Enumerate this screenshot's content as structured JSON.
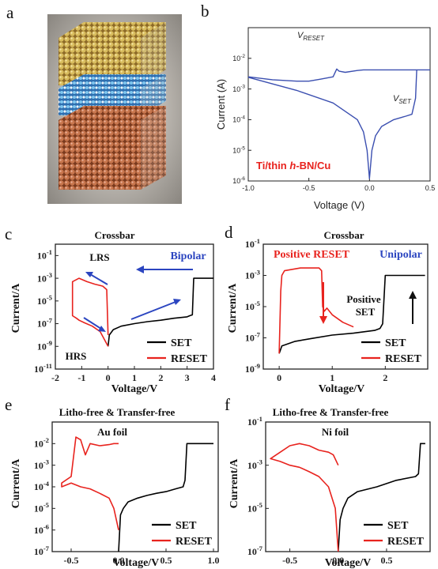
{
  "panel_letters": {
    "a": "a",
    "b": "b",
    "c": "c",
    "d": "d",
    "e": "e",
    "f": "f"
  },
  "colors": {
    "series_blue": "#3b4fb0",
    "set": "#000000",
    "reset": "#e8231e",
    "annot_blue": "#2b45c0",
    "annot_red": "#e8231e",
    "gold": "#c9a84c",
    "cyan": "#4aa0d8",
    "copper": "#c0704a"
  },
  "panel_a": {
    "layers": [
      "gold atoms (top electrode)",
      "blue hexagonal lattice (h-BN)",
      "copper atoms (bottom electrode)"
    ]
  },
  "chart_data": [
    {
      "id": "b",
      "type": "line",
      "xlabel": "Voltage (V)",
      "ylabel": "Current (A)",
      "xlim": [
        -1.0,
        0.5
      ],
      "ylim": [
        1e-06,
        0.1
      ],
      "yscale": "log",
      "xticks": [
        -1.0,
        -0.5,
        0.0,
        0.5
      ],
      "xtick_labels": [
        "-1.0",
        "-0.5",
        "0.0",
        "0.5"
      ],
      "yticks": [
        1e-06,
        1e-05,
        0.0001,
        0.001,
        0.01
      ],
      "ytick_labels": [
        "10-6",
        "10-5",
        "10-4",
        "10-3",
        "10-2"
      ],
      "annotations": [
        {
          "text": "V",
          "sub": "RESET",
          "x": -0.31,
          "y": 0.012
        },
        {
          "text": "V",
          "sub": "SET",
          "x": 0.35,
          "y": 0.00012
        }
      ],
      "label": "Ti/thin h-BN/Cu",
      "series": [
        {
          "name": "",
          "values_x": [
            -1.0,
            -0.8,
            -0.6,
            -0.5,
            -0.4,
            -0.3,
            -0.27,
            -0.25,
            -0.2,
            -0.1,
            -0.05,
            -0.02,
            0.0,
            0.02,
            0.05,
            0.1,
            0.2,
            0.3,
            0.35,
            0.38,
            0.4,
            0.5
          ],
          "values_y": [
            0.0025,
            0.002,
            0.0018,
            0.0018,
            0.0021,
            0.0025,
            0.0045,
            0.0038,
            0.0035,
            0.004,
            0.0042,
            0.0042,
            0.0042,
            0.0042,
            0.0042,
            0.0042,
            0.0042,
            0.0042,
            0.0042,
            0.0042,
            0.0042,
            0.0042
          ]
        },
        {
          "name": "",
          "values_x": [
            -1.0,
            -0.6,
            -0.3,
            -0.1,
            -0.05,
            -0.02,
            0.0,
            0.02,
            0.05,
            0.1,
            0.2,
            0.3,
            0.35,
            0.38,
            0.39
          ],
          "values_y": [
            0.0024,
            0.0009,
            0.00035,
            0.0001,
            4e-05,
            1e-05,
            1.2e-06,
            1e-05,
            3e-05,
            6e-05,
            0.0001,
            0.00013,
            0.00015,
            0.0005,
            0.0042
          ]
        }
      ]
    },
    {
      "id": "c",
      "type": "line",
      "title": "Crossbar",
      "xlabel": "Voltage/V",
      "ylabel": "Current/A",
      "xlim": [
        -2,
        4
      ],
      "ylim": [
        1e-11,
        1
      ],
      "yscale": "log",
      "xticks": [
        -2,
        -1,
        0,
        1,
        2,
        3,
        4
      ],
      "xtick_labels": [
        "-2",
        "-1",
        "0",
        "1",
        "2",
        "3",
        "4"
      ],
      "yticks": [
        1e-11,
        1e-09,
        1e-07,
        1e-05,
        0.001,
        0.1
      ],
      "ytick_labels": [
        "10-11",
        "10-9",
        "10-7",
        "10-5",
        "10-3",
        "10-1"
      ],
      "annotations": [
        "LRS",
        "HRS",
        "Bipolar"
      ],
      "legend": [
        "SET",
        "RESET"
      ],
      "legend_position": "bottom-right",
      "series": [
        {
          "name": "SET",
          "x": [
            0.0,
            0.05,
            0.2,
            0.5,
            1.0,
            1.5,
            2.0,
            2.5,
            3.0,
            3.1,
            3.2,
            3.25,
            4.0
          ],
          "y": [
            1e-09,
            1e-08,
            3e-08,
            6e-08,
            1e-07,
            1.5e-07,
            2e-07,
            3e-07,
            4e-07,
            5e-07,
            6e-07,
            0.001,
            0.001
          ]
        },
        {
          "name": "RESET",
          "x": [
            0.0,
            -0.3,
            -0.6,
            -0.9,
            -1.1,
            -1.2,
            -1.35,
            -1.35,
            -1.1,
            -0.8,
            -0.5,
            -0.2,
            -0.05,
            0.0
          ],
          "y": [
            1e-09,
            2e-08,
            6e-08,
            1.2e-07,
            2e-07,
            3e-07,
            5e-07,
            0.0005,
            0.001,
            0.0005,
            0.0003,
            0.0002,
            0.0001,
            1e-08
          ]
        }
      ]
    },
    {
      "id": "d",
      "type": "line",
      "title": "Crossbar",
      "xlabel": "Voltage/V",
      "ylabel": "Current/A",
      "xlim": [
        -0.3,
        2.8
      ],
      "ylim": [
        1e-09,
        0.1
      ],
      "yscale": "log",
      "xticks": [
        0,
        1,
        2
      ],
      "xtick_labels": [
        "0",
        "1",
        "2"
      ],
      "yticks": [
        1e-09,
        1e-07,
        1e-05,
        0.001,
        0.1
      ],
      "ytick_labels": [
        "10-9",
        "10-7",
        "10-5",
        "10-3",
        "10-1"
      ],
      "annotations": [
        "Positive RESET",
        "Unipolar",
        "Positive SET"
      ],
      "legend": [
        "SET",
        "RESET"
      ],
      "legend_position": "bottom-right",
      "series": [
        {
          "name": "SET",
          "x": [
            0.0,
            0.05,
            0.3,
            0.6,
            1.0,
            1.4,
            1.8,
            1.9,
            1.95,
            2.0,
            2.75
          ],
          "y": [
            1e-08,
            3e-08,
            6e-08,
            9e-08,
            1.5e-07,
            2e-07,
            3e-07,
            4e-07,
            8e-07,
            0.001,
            0.001
          ]
        },
        {
          "name": "RESET",
          "x": [
            0.0,
            0.03,
            0.05,
            0.1,
            0.4,
            0.75,
            0.8,
            0.82,
            0.85,
            0.9,
            1.0,
            1.2,
            1.4
          ],
          "y": [
            1e-08,
            0.0001,
            0.001,
            0.002,
            0.003,
            0.003,
            0.002,
            1e-05,
            5e-06,
            8e-06,
            3e-06,
            1e-06,
            5e-07
          ]
        }
      ]
    },
    {
      "id": "e",
      "type": "line",
      "title": "Litho-free & Transfer-free",
      "label": "Au foil",
      "xlabel": "Voltage/V",
      "ylabel": "Current/A",
      "xlim": [
        -0.7,
        1.05
      ],
      "ylim": [
        1e-07,
        0.1
      ],
      "yscale": "log",
      "xticks": [
        -0.5,
        0.0,
        0.5,
        1.0
      ],
      "xtick_labels": [
        "-0.5",
        "0.0",
        "0.5",
        "1.0"
      ],
      "yticks": [
        1e-07,
        1e-06,
        1e-05,
        0.0001,
        0.001,
        0.01
      ],
      "ytick_labels": [
        "10-7",
        "10-6",
        "10-5",
        "10-4",
        "10-3",
        "10-2"
      ],
      "legend": [
        "SET",
        "RESET"
      ],
      "legend_position": "bottom-right",
      "series": [
        {
          "name": "SET",
          "x": [
            0.0,
            0.02,
            0.05,
            0.1,
            0.2,
            0.3,
            0.4,
            0.5,
            0.6,
            0.68,
            0.7,
            0.72,
            1.0
          ],
          "y": [
            1e-07,
            5e-06,
            1e-05,
            2e-05,
            3e-05,
            4e-05,
            5e-05,
            6e-05,
            8e-05,
            0.0001,
            0.0002,
            0.01,
            0.01
          ]
        },
        {
          "name": "RESET",
          "x": [
            0.0,
            -0.05,
            -0.1,
            -0.2,
            -0.3,
            -0.4,
            -0.5,
            -0.6,
            -0.6,
            -0.5,
            -0.45,
            -0.4,
            -0.35,
            -0.3,
            -0.2,
            -0.1,
            -0.05,
            0.0
          ],
          "y": [
            1e-06,
            1e-05,
            3e-05,
            5e-05,
            8e-05,
            0.0001,
            0.00015,
            0.0001,
            0.00015,
            0.0003,
            0.02,
            0.015,
            0.003,
            0.01,
            0.008,
            0.009,
            0.01,
            0.01
          ]
        }
      ]
    },
    {
      "id": "f",
      "type": "line",
      "title": "Litho-free & Transfer-free",
      "label": "Ni foil",
      "xlabel": "Voltage/V",
      "ylabel": "Current/A",
      "xlim": [
        -0.75,
        0.95
      ],
      "ylim": [
        1e-07,
        0.1
      ],
      "yscale": "log",
      "xticks": [
        -0.5,
        0.0,
        0.5
      ],
      "xtick_labels": [
        "-0.5",
        "0.0",
        "0.5"
      ],
      "yticks": [
        1e-07,
        1e-05,
        0.001,
        0.1
      ],
      "ytick_labels": [
        "10-7",
        "10-5",
        "10-3",
        "10-1"
      ],
      "legend": [
        "SET",
        "RESET"
      ],
      "legend_position": "bottom-right",
      "series": [
        {
          "name": "SET",
          "x": [
            0.0,
            0.02,
            0.05,
            0.1,
            0.2,
            0.4,
            0.6,
            0.8,
            0.83,
            0.85,
            0.9
          ],
          "y": [
            1e-07,
            3e-06,
            1e-05,
            3e-05,
            6e-05,
            0.0001,
            0.0002,
            0.0003,
            0.0004,
            0.01,
            0.01
          ]
        },
        {
          "name": "RESET",
          "x": [
            0.0,
            -0.03,
            -0.1,
            -0.2,
            -0.3,
            -0.4,
            -0.5,
            -0.6,
            -0.7,
            -0.6,
            -0.5,
            -0.4,
            -0.3,
            -0.2,
            -0.1,
            -0.05,
            0.0
          ],
          "y": [
            1e-07,
            1e-05,
            0.0001,
            0.0003,
            0.0005,
            0.0008,
            0.001,
            0.0015,
            0.002,
            0.004,
            0.008,
            0.01,
            0.008,
            0.005,
            0.004,
            0.003,
            0.001
          ]
        }
      ]
    }
  ]
}
